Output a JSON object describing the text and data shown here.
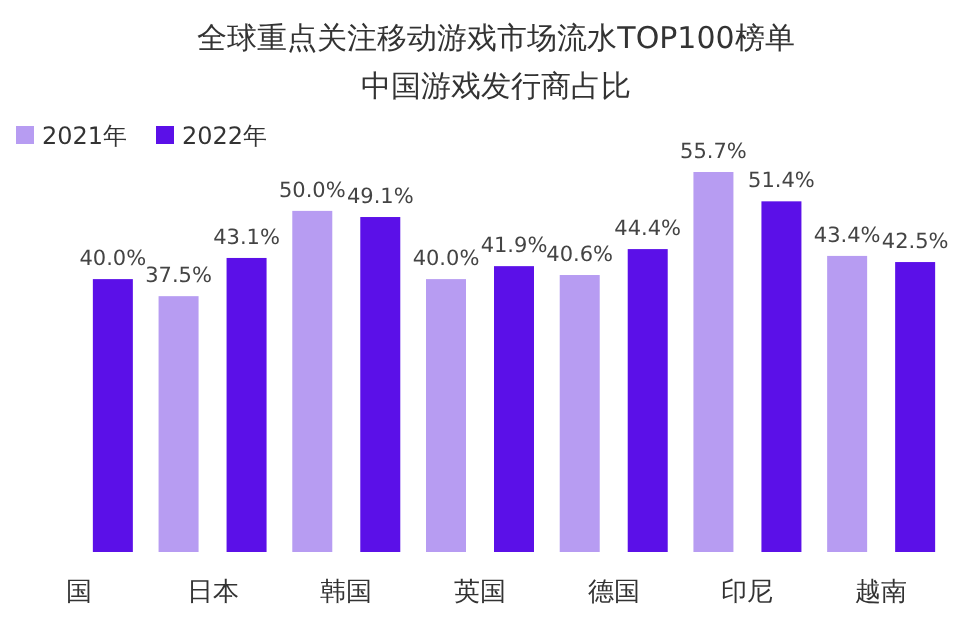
{
  "chart_data": {
    "type": "bar",
    "title": "全球重点关注移动游戏市场流水TOP100榜单",
    "subtitle": "中国游戏发行商占比",
    "categories": [
      "国",
      "日本",
      "韩国",
      "英国",
      "德国",
      "印尼",
      "越南"
    ],
    "series": [
      {
        "name": "2021年",
        "color": "#b79cf2",
        "values": [
          null,
          37.5,
          50.0,
          40.0,
          40.6,
          55.7,
          43.4
        ],
        "value_labels": [
          null,
          "37.5%",
          "50.0%",
          "40.0%",
          "40.6%",
          "55.7%",
          "43.4%"
        ]
      },
      {
        "name": "2022年",
        "color": "#5b10e8",
        "values": [
          40.0,
          43.1,
          49.1,
          41.9,
          44.4,
          51.4,
          42.5
        ],
        "value_labels": [
          "40.0%",
          "43.1%",
          "49.1%",
          "41.9%",
          "44.4%",
          "51.4%",
          "42.5%"
        ]
      }
    ],
    "legend": "top left",
    "grid": false
  }
}
